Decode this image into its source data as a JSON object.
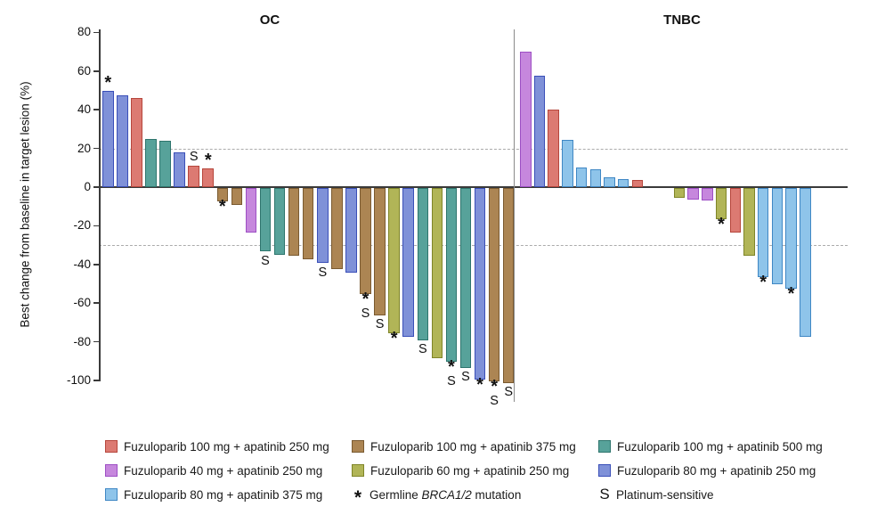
{
  "chart_data": {
    "type": "bar",
    "subtype": "waterfall",
    "ylabel": "Best change from baseline in target lesion (%)",
    "ylim": [
      -100,
      80
    ],
    "yticks": [
      80,
      60,
      40,
      20,
      0,
      -20,
      -40,
      -60,
      -80,
      -100
    ],
    "reference_lines": [
      20,
      -30
    ],
    "grid": false,
    "annotation_symbols": {
      "star": "*",
      "s": "S"
    },
    "sections": [
      {
        "title": "OC",
        "bars": [
          {
            "v": 50,
            "c": "royal",
            "above": "*"
          },
          {
            "v": 47.5,
            "c": "royal"
          },
          {
            "v": 46,
            "c": "red"
          },
          {
            "v": 25,
            "c": "teal"
          },
          {
            "v": 24,
            "c": "teal"
          },
          {
            "v": 18,
            "c": "royal"
          },
          {
            "v": 11,
            "c": "red",
            "above": "S"
          },
          {
            "v": 9.5,
            "c": "red",
            "above": "*"
          },
          {
            "v": -7,
            "c": "brown",
            "below": "*"
          },
          {
            "v": -9,
            "c": "brown"
          },
          {
            "v": -23,
            "c": "purple"
          },
          {
            "v": -33,
            "c": "teal",
            "below": "S"
          },
          {
            "v": -34.5,
            "c": "teal"
          },
          {
            "v": -35,
            "c": "brown"
          },
          {
            "v": -37,
            "c": "brown"
          },
          {
            "v": -39,
            "c": "royal",
            "below": "S"
          },
          {
            "v": -42,
            "c": "brown"
          },
          {
            "v": -44,
            "c": "royal"
          },
          {
            "v": -55,
            "c": "brown",
            "below": "*S"
          },
          {
            "v": -66,
            "c": "brown",
            "below": "S"
          },
          {
            "v": -75,
            "c": "olive",
            "below": "*"
          },
          {
            "v": -77,
            "c": "royal"
          },
          {
            "v": -79,
            "c": "teal",
            "below": "S"
          },
          {
            "v": -88,
            "c": "olive"
          },
          {
            "v": -90,
            "c": "teal",
            "below": "*S"
          },
          {
            "v": -93,
            "c": "teal",
            "below": "S"
          },
          {
            "v": -99,
            "c": "royal",
            "below": "*"
          },
          {
            "v": -100,
            "c": "brown",
            "below": "*S"
          },
          {
            "v": -101,
            "c": "brown",
            "below": "S"
          }
        ]
      },
      {
        "title": "TNBC",
        "bars": [
          {
            "v": 70,
            "c": "purple"
          },
          {
            "v": 57.5,
            "c": "royal"
          },
          {
            "v": 40,
            "c": "red"
          },
          {
            "v": 24.5,
            "c": "sky"
          },
          {
            "v": 10,
            "c": "sky"
          },
          {
            "v": 9,
            "c": "sky"
          },
          {
            "v": 5,
            "c": "sky"
          },
          {
            "v": 4.3,
            "c": "sky"
          },
          {
            "v": 3.8,
            "c": "red"
          },
          {
            "gap": 2
          },
          {
            "v": -5,
            "c": "olive"
          },
          {
            "v": -6,
            "c": "purple"
          },
          {
            "v": -6.5,
            "c": "purple"
          },
          {
            "v": -16,
            "c": "olive",
            "below": "*"
          },
          {
            "v": -23,
            "c": "red"
          },
          {
            "v": -35,
            "c": "olive"
          },
          {
            "v": -46,
            "c": "sky",
            "below": "*"
          },
          {
            "v": -50,
            "c": "sky"
          },
          {
            "v": -52,
            "c": "sky",
            "below": "*"
          },
          {
            "v": -77,
            "c": "sky"
          }
        ]
      }
    ]
  },
  "colors": {
    "red": {
      "fill": "#dc7a72",
      "stroke": "#b6463c"
    },
    "brown": {
      "fill": "#ac8553",
      "stroke": "#7a5a30"
    },
    "teal": {
      "fill": "#57a29a",
      "stroke": "#2e756d"
    },
    "purple": {
      "fill": "#c687dd",
      "stroke": "#9d4fc4"
    },
    "olive": {
      "fill": "#b1b557",
      "stroke": "#7f8528"
    },
    "royal": {
      "fill": "#7f91d8",
      "stroke": "#3a4fb8"
    },
    "sky": {
      "fill": "#8ec4ea",
      "stroke": "#3f87c4"
    }
  },
  "legend": {
    "columns": [
      {
        "items": [
          {
            "swatch": "red",
            "label": "Fuzuloparib 100 mg + apatinib 250 mg"
          },
          {
            "swatch": "purple",
            "label": "Fuzuloparib 40 mg + apatinib 250 mg"
          },
          {
            "swatch": "sky",
            "label": "Fuzuloparib 80 mg + apatinib 375 mg"
          }
        ]
      },
      {
        "items": [
          {
            "swatch": "brown",
            "label": "Fuzuloparib 100 mg + apatinib 375 mg"
          },
          {
            "swatch": "olive",
            "label": "Fuzuloparib 60 mg + apatinib 250 mg"
          },
          {
            "symbol": "*",
            "label_pre": "Germline ",
            "label_italic": "BRCA1/2",
            "label_post": " mutation"
          }
        ]
      },
      {
        "items": [
          {
            "swatch": "teal",
            "label": "Fuzuloparib 100 mg + apatinib 500 mg"
          },
          {
            "swatch": "royal",
            "label": "Fuzuloparib 80 mg + apatinib 250 mg"
          },
          {
            "symbol": "S",
            "label": "Platinum-sensitive"
          }
        ]
      }
    ]
  }
}
